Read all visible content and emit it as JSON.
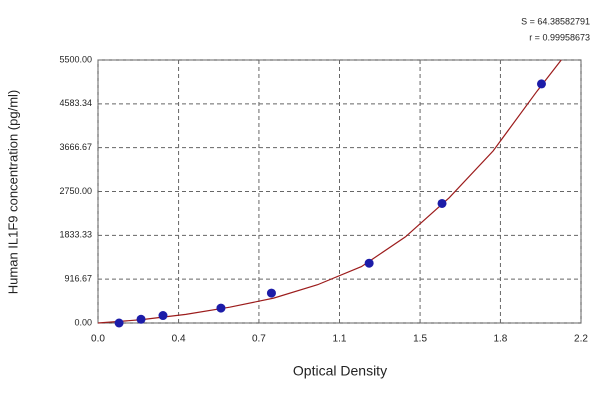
{
  "chart_data": {
    "type": "scatter",
    "annotations": [
      "S = 64.38582791",
      "r = 0.99958673"
    ],
    "xlabel": "Optical Density",
    "ylabel": "Human IL1F9 concentration (pg/ml)",
    "xlim": [
      0,
      2.2
    ],
    "xticks": [
      {
        "value": 0,
        "label": "0.0"
      },
      {
        "value": 0.367,
        "label": "0.4"
      },
      {
        "value": 0.733,
        "label": "0.7"
      },
      1.1,
      {
        "value": 1.467,
        "label": "1.5"
      },
      {
        "value": 1.833,
        "label": "1.8"
      },
      2.2
    ],
    "ylim": [
      0,
      5500
    ],
    "yticks": [
      {
        "value": 0,
        "label": "0.00"
      },
      916.67,
      1833.33,
      {
        "value": 2750,
        "label": "2750.00"
      },
      3666.67,
      4583.34,
      {
        "value": 5500,
        "label": "5500.00"
      }
    ],
    "grid": true,
    "points": {
      "color": "#1c1ca8",
      "x": [
        0.096,
        0.196,
        0.296,
        0.56,
        0.79,
        1.235,
        1.567,
        2.02
      ],
      "y": [
        0,
        78,
        156,
        312,
        625,
        1250,
        2500,
        5000
      ]
    },
    "fit": {
      "color": "#9c1c1c",
      "x": [
        0,
        0.2,
        0.4,
        0.6,
        0.8,
        1.0,
        1.2,
        1.4,
        1.6,
        1.8,
        2.0,
        2.11
      ],
      "y": [
        0,
        70,
        180,
        330,
        520,
        800,
        1180,
        1800,
        2620,
        3600,
        4850,
        5500
      ]
    }
  }
}
